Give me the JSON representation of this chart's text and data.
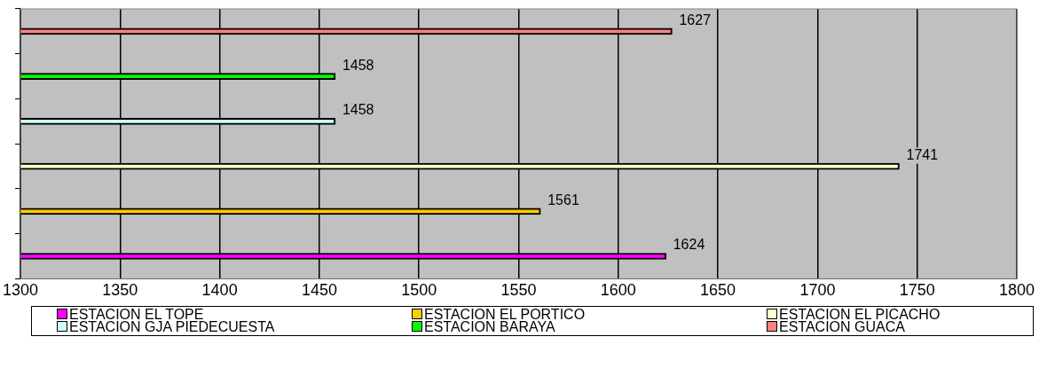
{
  "chart_data": {
    "type": "bar",
    "orientation": "horizontal",
    "categories": [
      null,
      null,
      null,
      null,
      null,
      null
    ],
    "series": [
      {
        "name": "ESTACION EL TOPE",
        "color": "#ff00ff",
        "values": [
          null,
          null,
          null,
          null,
          null,
          1624
        ]
      },
      {
        "name": "ESTACION EL PORTICO",
        "color": "#ffcc00",
        "values": [
          null,
          null,
          null,
          null,
          1561,
          null
        ]
      },
      {
        "name": "ESTACION EL PICACHO",
        "color": "#ffffcc",
        "values": [
          null,
          null,
          null,
          1741,
          null,
          null
        ]
      },
      {
        "name": "ESTACION GJA PIEDECUESTA",
        "color": "#ccffff",
        "values": [
          null,
          null,
          1458,
          null,
          null,
          null
        ]
      },
      {
        "name": "ESTACION BARAYA",
        "color": "#00ff00",
        "values": [
          null,
          1458,
          null,
          null,
          null,
          null
        ]
      },
      {
        "name": "ESTACION GUACA",
        "color": "#ff8080",
        "values": [
          1627,
          null,
          null,
          null,
          null,
          null
        ]
      }
    ],
    "xlim": [
      1300,
      1800
    ],
    "xticks": [
      1300,
      1350,
      1400,
      1450,
      1500,
      1550,
      1600,
      1650,
      1700,
      1750,
      1800
    ],
    "grid": "x",
    "legend": "bottom",
    "tick_labels": "x",
    "data_labels": true
  }
}
